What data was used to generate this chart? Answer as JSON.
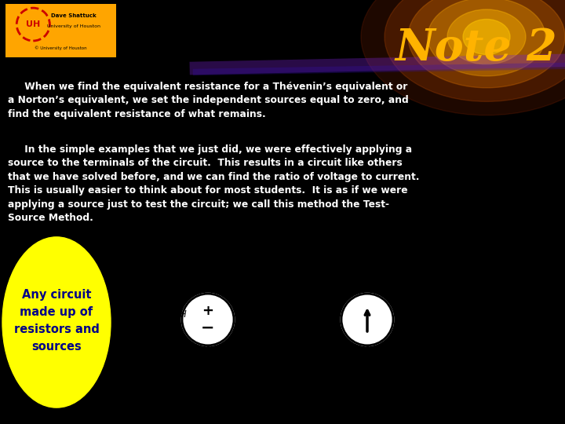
{
  "title": "Note 2",
  "title_color": "#FFB300",
  "title_fontsize": 40,
  "bg_top_color": "#000000",
  "text_color": "#FFFFFF",
  "logo_bg": "#FFA500",
  "paragraph1": "     When we find the equivalent resistance for a Thévenin’s equivalent or\na Norton’s equivalent, we set the independent sources equal to zero, and\nfind the equivalent resistance of what remains.",
  "paragraph2": "     In the simple examples that we just did, we were effectively applying a\nsource to the terminals of the circuit.  This results in a circuit like others\nthat we have solved before, and we can find the ratio of voltage to current.\nThis is usually easier to think about for most students.  It is as if we were\napplying a source just to test the circuit; we call this method the Test-\nSource Method.",
  "yellow_blob_text": "Any circuit\nmade up of\nresistors and\nsources",
  "circuit_bg": "#00C8D0",
  "node_color": "#000000",
  "wire_color": "#000000"
}
